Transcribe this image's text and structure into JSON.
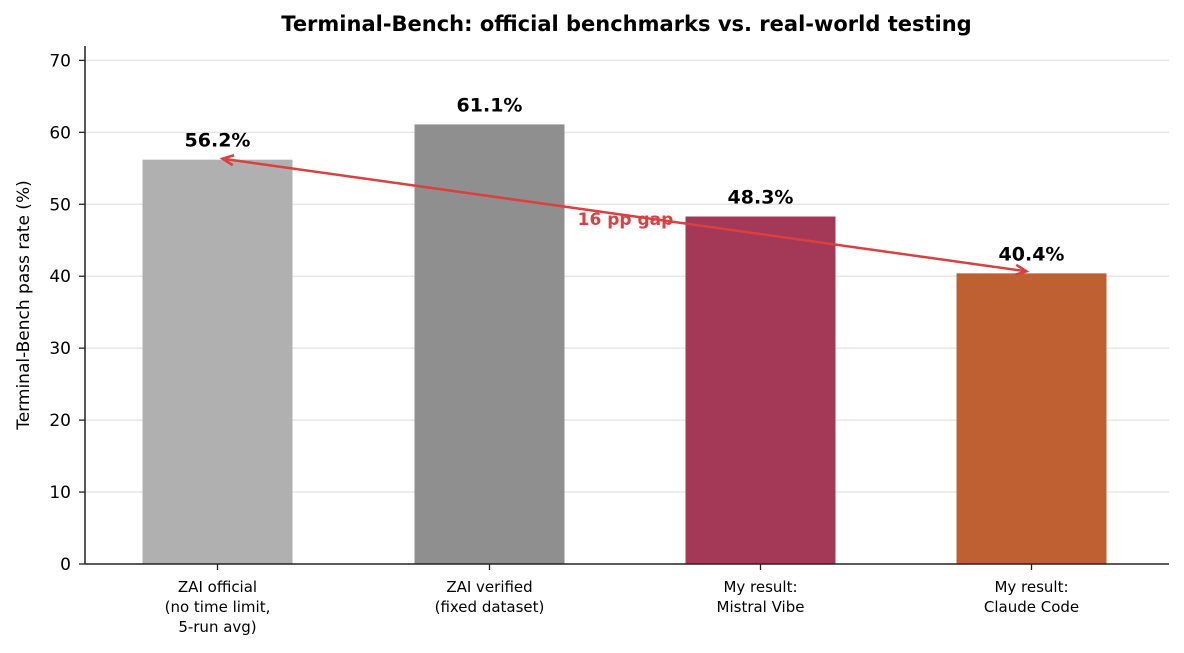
{
  "chart_data": {
    "type": "bar",
    "title": "Terminal-Bench: official benchmarks vs. real-world testing",
    "xlabel": "",
    "ylabel": "Terminal-Bench pass rate (%)",
    "ylim": [
      0,
      72
    ],
    "yticks": [
      0,
      10,
      20,
      30,
      40,
      50,
      60,
      70
    ],
    "grid": "horizontal",
    "categories": [
      [
        "ZAI official",
        "(no time limit,",
        "5-run avg)"
      ],
      [
        "ZAI verified",
        "(fixed dataset)"
      ],
      [
        "My result:",
        "Mistral Vibe"
      ],
      [
        "My result:",
        "Claude Code"
      ]
    ],
    "values": [
      56.2,
      61.1,
      48.3,
      40.4
    ],
    "value_labels": [
      "56.2%",
      "61.1%",
      "48.3%",
      "40.4%"
    ],
    "colors": [
      "#b0b0b0",
      "#8f8f8f",
      "#a43857",
      "#bf6032"
    ],
    "annotations": [
      {
        "type": "double-arrow",
        "from": {
          "bar": 0,
          "value": 56.2
        },
        "to": {
          "bar": 3,
          "value": 40.4
        },
        "text": "16 pp gap",
        "color": "#d94040"
      }
    ]
  }
}
